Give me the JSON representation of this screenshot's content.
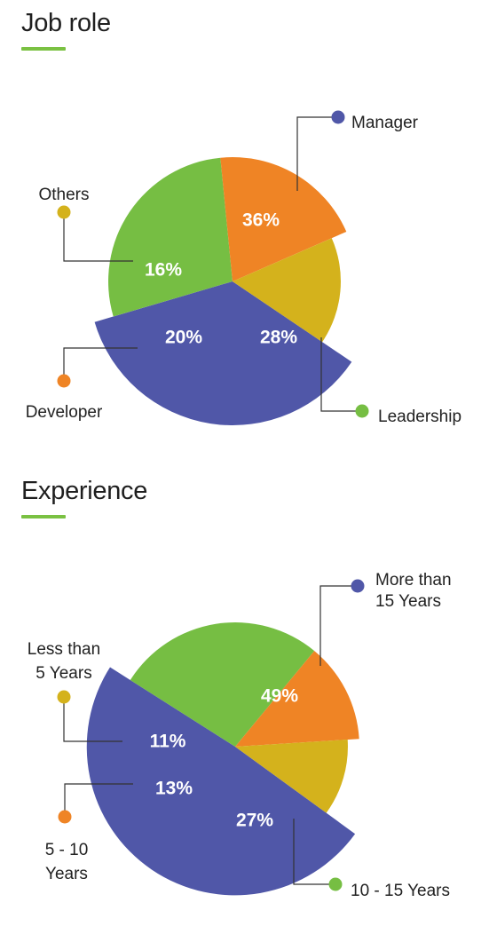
{
  "chart_data": [
    {
      "type": "pie",
      "title": "Job role",
      "accent": "#7ac142",
      "slices": [
        {
          "label": [
            "Manager"
          ],
          "value": 36,
          "display": "36%",
          "color": "#5057a8"
        },
        {
          "label": [
            "Leadership"
          ],
          "value": 28,
          "display": "28%",
          "color": "#76be43"
        },
        {
          "label": [
            "Developer"
          ],
          "value": 20,
          "display": "20%",
          "color": "#ef8425"
        },
        {
          "label": [
            "Others"
          ],
          "value": 16,
          "display": "16%",
          "color": "#d4b21c"
        }
      ]
    },
    {
      "type": "pie",
      "title": "Experience",
      "accent": "#7ac142",
      "slices": [
        {
          "label": [
            "More than",
            "15 Years"
          ],
          "value": 49,
          "display": "49%",
          "color": "#5057a8"
        },
        {
          "label": [
            "10 - 15 Years"
          ],
          "value": 27,
          "display": "27%",
          "color": "#76be43"
        },
        {
          "label": [
            "5 - 10",
            "Years"
          ],
          "value": 13,
          "display": "13%",
          "color": "#ef8425"
        },
        {
          "label": [
            "Less than",
            "5 Years"
          ],
          "value": 11,
          "display": "11%",
          "color": "#d4b21c"
        }
      ]
    }
  ]
}
